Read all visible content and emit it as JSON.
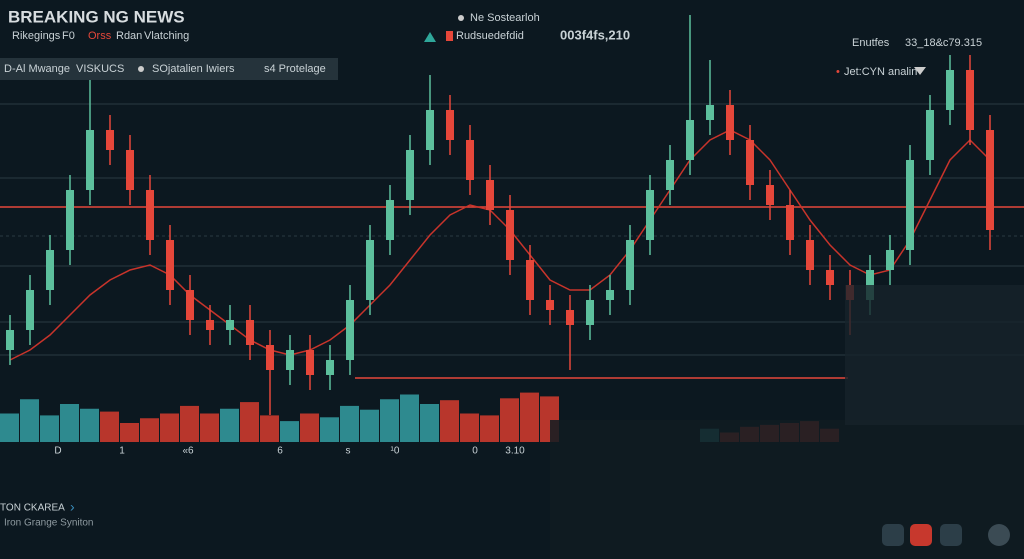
{
  "header": {
    "title": "BREAKING NG NEWS",
    "tabs": [
      "Rikegings",
      "F0",
      "Orss",
      "Rdan",
      "Vlatching"
    ],
    "search": "Ne Sostearloh",
    "ticker": "Rudsuedefdid",
    "price": "003f4fs,210",
    "right_label": "Enutfes",
    "right_value": "33_18&c79.315"
  },
  "toolbar": {
    "items": [
      "D-Al Mwange",
      "VISKUCS",
      "SOjatalien Iwiers",
      "s4 Protelage"
    ],
    "pair": "Jet:CYN analin"
  },
  "chart_data": {
    "type": "candlestick",
    "open": [
      150,
      170,
      210,
      250,
      310,
      370,
      350,
      310,
      260,
      210,
      180,
      170,
      180,
      155,
      130,
      150,
      125,
      140,
      200,
      260,
      300,
      350,
      390,
      360,
      320,
      290,
      240,
      200,
      190,
      175,
      200,
      210,
      260,
      310,
      340,
      380,
      395,
      360,
      315,
      295,
      260,
      230,
      215,
      200,
      230,
      250,
      340,
      390,
      430,
      370
    ],
    "high": [
      185,
      225,
      265,
      325,
      420,
      385,
      365,
      325,
      275,
      225,
      195,
      195,
      195,
      170,
      165,
      165,
      155,
      215,
      275,
      315,
      365,
      425,
      405,
      375,
      335,
      305,
      255,
      215,
      205,
      215,
      225,
      275,
      325,
      355,
      485,
      440,
      410,
      375,
      330,
      310,
      275,
      245,
      230,
      245,
      265,
      355,
      405,
      445,
      445,
      385
    ],
    "low": [
      135,
      155,
      195,
      235,
      295,
      335,
      295,
      245,
      195,
      165,
      155,
      155,
      140,
      85,
      115,
      110,
      110,
      125,
      185,
      245,
      285,
      335,
      345,
      305,
      275,
      225,
      185,
      175,
      130,
      160,
      185,
      195,
      245,
      295,
      325,
      365,
      345,
      300,
      280,
      245,
      215,
      200,
      165,
      185,
      215,
      235,
      325,
      375,
      355,
      250
    ],
    "close": [
      170,
      210,
      250,
      310,
      370,
      350,
      310,
      260,
      210,
      180,
      170,
      180,
      155,
      130,
      150,
      125,
      140,
      200,
      260,
      300,
      350,
      390,
      360,
      320,
      290,
      240,
      200,
      190,
      175,
      200,
      210,
      260,
      310,
      340,
      380,
      395,
      360,
      315,
      295,
      260,
      230,
      215,
      200,
      230,
      250,
      340,
      390,
      430,
      370,
      270
    ],
    "ma": [
      140,
      150,
      165,
      185,
      205,
      220,
      230,
      235,
      225,
      205,
      190,
      175,
      160,
      150,
      145,
      150,
      160,
      175,
      195,
      215,
      240,
      265,
      285,
      295,
      290,
      270,
      245,
      220,
      210,
      210,
      225,
      250,
      280,
      310,
      340,
      360,
      370,
      360,
      340,
      310,
      280,
      255,
      235,
      225,
      230,
      260,
      300,
      340,
      360,
      340
    ],
    "volumes": [
      30,
      45,
      28,
      40,
      35,
      32,
      20,
      25,
      30,
      38,
      30,
      35,
      42,
      28,
      22,
      30,
      26,
      38,
      34,
      45,
      50,
      40,
      44,
      30,
      28,
      46,
      52,
      48,
      null,
      null,
      null,
      null,
      null,
      null,
      null,
      14,
      10,
      16,
      18,
      20,
      22,
      14,
      null,
      null,
      null,
      null,
      null,
      null,
      null,
      null
    ],
    "hlines": [
      293,
      122
    ],
    "ylim": [
      60,
      440
    ],
    "y2lim": [
      0,
      60
    ],
    "up_color": "#5cbf9c",
    "down_color": "#e5473a",
    "ma_color": "#c8342b",
    "x_labels": [
      "D",
      "1",
      "«6",
      "6",
      "s",
      "¹0",
      "0",
      "3.10"
    ]
  },
  "footer": {
    "title": "TON CKAREA",
    "subtitle": "Iron Grange Syniton"
  }
}
